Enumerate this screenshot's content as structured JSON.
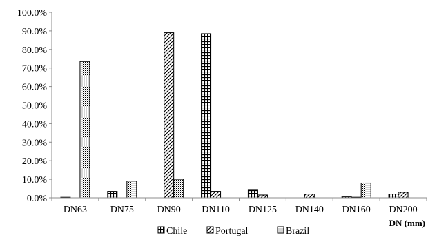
{
  "chart_data": {
    "type": "bar",
    "categories": [
      "DN63",
      "DN75",
      "DN90",
      "DN110",
      "DN125",
      "DN140",
      "DN160",
      "DN200"
    ],
    "series": [
      {
        "name": "Chile",
        "values": [
          0.3,
          3.5,
          0.0,
          88.5,
          4.5,
          0.0,
          0.5,
          2.0
        ]
      },
      {
        "name": "Portugal",
        "values": [
          0.0,
          0.0,
          89.0,
          3.5,
          1.5,
          2.0,
          0.3,
          3.0
        ]
      },
      {
        "name": "Brazil",
        "values": [
          73.5,
          9.0,
          10.0,
          0.0,
          0.0,
          0.0,
          8.0,
          0.0
        ]
      }
    ],
    "xlabel": "DN (mm)",
    "ylabel": "",
    "ylim": [
      0,
      100
    ],
    "yticks": [
      "0.0%",
      "10.0%",
      "20.0%",
      "30.0%",
      "40.0%",
      "50.0%",
      "60.0%",
      "70.0%",
      "80.0%",
      "90.0%",
      "100.0%"
    ],
    "grid": false,
    "legend_position": "bottom",
    "fill_patterns": {
      "Chile": "grid",
      "Portugal": "diagonal-hatch",
      "Brazil": "dots"
    }
  }
}
